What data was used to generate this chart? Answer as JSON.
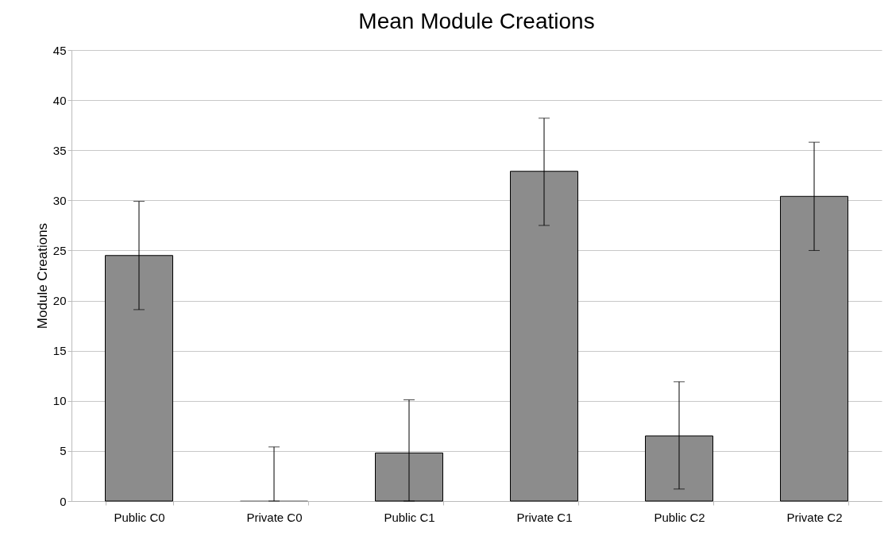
{
  "chart_data": {
    "type": "bar",
    "title": "Mean Module Creations",
    "ylabel": "Module Creations",
    "categories": [
      "Public C0",
      "Private C0",
      "Public C1",
      "Private C1",
      "Public C2",
      "Private C2"
    ],
    "values": [
      24.5,
      0,
      4.8,
      32.9,
      6.5,
      30.4
    ],
    "errors": [
      [
        19.1,
        29.9
      ],
      [
        0,
        5.4
      ],
      [
        0,
        10.1
      ],
      [
        27.5,
        38.2
      ],
      [
        1.2,
        11.9
      ],
      [
        25.0,
        35.8
      ]
    ],
    "color": "#8c8c8c",
    "ylim": [
      0,
      45
    ],
    "yticks": [
      0,
      5,
      10,
      15,
      20,
      25,
      30,
      35,
      40,
      45
    ],
    "grid": "y"
  }
}
